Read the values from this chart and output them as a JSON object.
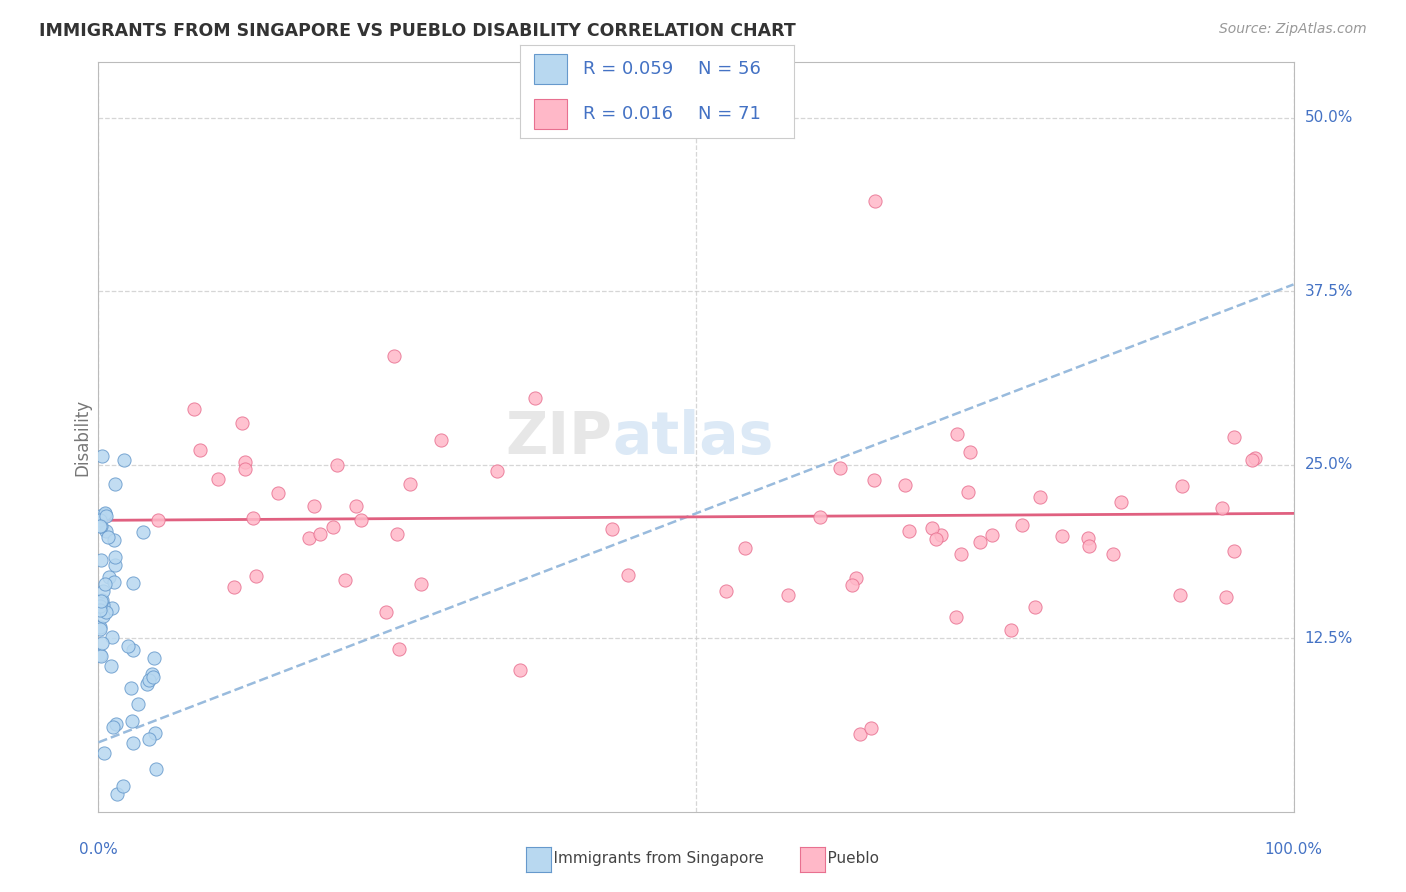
{
  "title": "IMMIGRANTS FROM SINGAPORE VS PUEBLO DISABILITY CORRELATION CHART",
  "source": "Source: ZipAtlas.com",
  "ylabel": "Disability",
  "color_blue_fill": "#B8D8F0",
  "color_blue_edge": "#6699CC",
  "color_blue_text": "#4472C4",
  "color_pink_fill": "#FFB8C8",
  "color_pink_edge": "#E87090",
  "color_trend_blue": "#99BBDD",
  "color_trend_pink": "#E06080",
  "color_grid": "#CCCCCC",
  "color_title": "#333333",
  "color_source": "#999999",
  "color_ylabel": "#777777",
  "background": "#FFFFFF",
  "xlim": [
    0,
    100
  ],
  "ylim": [
    0,
    54
  ],
  "yticks": [
    12.5,
    25.0,
    37.5,
    50.0
  ],
  "ytick_labels": [
    "12.5%",
    "25.0%",
    "37.5%",
    "50.0%"
  ],
  "xtick_grid": [
    0,
    50,
    100
  ],
  "R_sing": 0.059,
  "N_sing": 56,
  "R_pueblo": 0.016,
  "N_pueblo": 71,
  "trend_sing_x0": 0,
  "trend_sing_y0": 5.0,
  "trend_sing_x1": 100,
  "trend_sing_y1": 38.0,
  "trend_pueblo_x0": 0,
  "trend_pueblo_y0": 21.0,
  "trend_pueblo_x1": 100,
  "trend_pueblo_y1": 21.5,
  "legend_label_sing": "Immigrants from Singapore",
  "legend_label_pueblo": "Pueblo",
  "watermark": "ZIPatlas",
  "watermark_zip": "ZIP",
  "watermark_atlas": "atlas"
}
